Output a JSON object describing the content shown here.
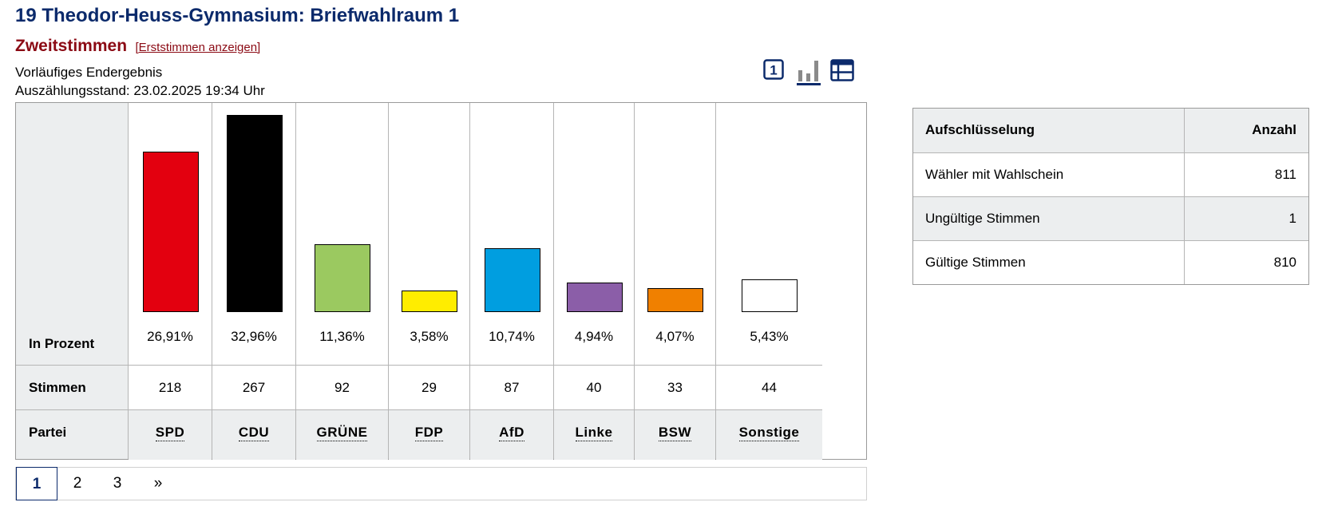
{
  "page": {
    "title": "19 Theodor-Heuss-Gymnasium: Briefwahlraum 1",
    "vote_type": "Zweitstimmen",
    "toggle_link": "[Erststimmen anzeigen]",
    "status": "Vorläufiges Endergebnis",
    "count_state": "Auszählungsstand: 23.02.2025 19:34 Uhr"
  },
  "view_icons": {
    "number_view": "1",
    "active": "bar-chart-icon",
    "icons": [
      "number-icon",
      "bar-chart-icon",
      "table-icon"
    ],
    "accent_color": "#0b2a6b"
  },
  "table": {
    "row_headers": {
      "percent": "In Prozent",
      "votes": "Stimmen",
      "party": "Partei"
    }
  },
  "chart_data": {
    "type": "bar",
    "categories": [
      "SPD",
      "CDU",
      "GRÜNE",
      "FDP",
      "AfD",
      "Linke",
      "BSW",
      "Sonstige"
    ],
    "values": [
      26.91,
      32.96,
      11.36,
      3.58,
      10.74,
      4.94,
      4.07,
      5.43
    ],
    "value_labels": [
      "26,91%",
      "32,96%",
      "11,36%",
      "3,58%",
      "10,74%",
      "4,94%",
      "4,07%",
      "5,43%"
    ],
    "votes": [
      "218",
      "267",
      "92",
      "29",
      "87",
      "40",
      "33",
      "44"
    ],
    "colors": [
      "#e3000f",
      "#000000",
      "#9bc960",
      "#ffed00",
      "#009ee0",
      "#8b5ea8",
      "#f08000",
      "#ffffff"
    ],
    "ylim": [
      0,
      33
    ]
  },
  "pagination": {
    "pages": [
      "1",
      "2",
      "3",
      "»"
    ],
    "active": "1"
  },
  "breakdown": {
    "header": {
      "label": "Aufschlüsselung",
      "value": "Anzahl"
    },
    "rows": [
      {
        "label": "Wähler mit Wahlschein",
        "value": "811"
      },
      {
        "label": "Ungültige Stimmen",
        "value": "1"
      },
      {
        "label": "Gültige Stimmen",
        "value": "810"
      }
    ]
  }
}
